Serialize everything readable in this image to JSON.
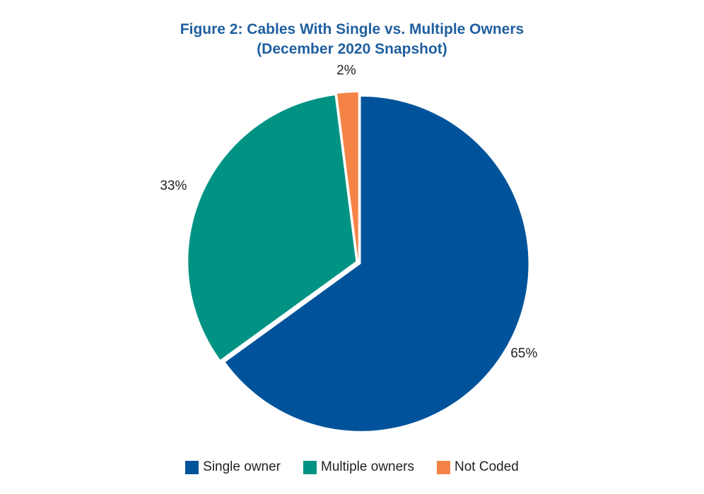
{
  "title_line1": "Figure 2: Cables With Single vs. Multiple Owners",
  "title_line2": "(December 2020 Snapshot)",
  "colors": {
    "title": "#1f5f9f",
    "single_owner": "#00539b",
    "multiple_owners": "#009384",
    "not_coded": "#f58345"
  },
  "chart_data": {
    "type": "pie",
    "title": "Figure 2: Cables With Single vs. Multiple Owners (December 2020 Snapshot)",
    "categories": [
      "Single owner",
      "Multiple owners",
      "Not Coded"
    ],
    "values": [
      65,
      33,
      2
    ],
    "data_labels": [
      "65%",
      "33%",
      "2%"
    ],
    "legend_position": "bottom",
    "start": "12 o'clock",
    "direction": "clockwise"
  }
}
